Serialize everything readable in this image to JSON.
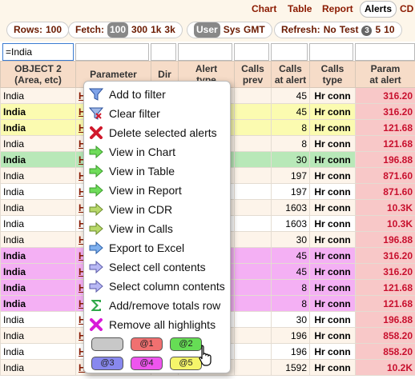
{
  "nav": {
    "tabs": [
      {
        "label": "Chart"
      },
      {
        "label": "Table"
      },
      {
        "label": "Report"
      },
      {
        "label": "Alerts",
        "active": true
      },
      {
        "label": "CD"
      }
    ]
  },
  "toolbar": {
    "rows": {
      "label": "Rows:",
      "value": "100"
    },
    "fetch": {
      "label": "Fetch:",
      "options": [
        "100",
        "300",
        "1k",
        "3k"
      ],
      "selected": "100"
    },
    "tz": {
      "options": [
        "User",
        "Sys",
        "GMT"
      ],
      "selected": "User"
    },
    "refresh": {
      "label": "Refresh:",
      "options": [
        "No",
        "Test",
        "3",
        "5",
        "10"
      ]
    }
  },
  "filter": {
    "value": "=India"
  },
  "table": {
    "headers": [
      "OBJECT 2\n(Area, etc)",
      "Parameter",
      "Dir",
      "Alert\ntype",
      "Calls\nprev",
      "Calls\nat alert",
      "Calls\ntype",
      "Param\nat alert"
    ],
    "rows": [
      {
        "object": "India",
        "param": "H",
        "calls_at_alert": "45",
        "calls_type": "Hr conn",
        "param_at_alert": "316.20",
        "style": "even",
        "bold": false
      },
      {
        "object": "India",
        "param": "H",
        "calls_at_alert": "45",
        "calls_type": "Hr conn",
        "param_at_alert": "316.20",
        "style": "yellow",
        "bold": true
      },
      {
        "object": "India",
        "param": "H",
        "calls_at_alert": "8",
        "calls_type": "Hr conn",
        "param_at_alert": "121.68",
        "style": "yellow",
        "bold": true
      },
      {
        "object": "India",
        "param": "H",
        "calls_at_alert": "8",
        "calls_type": "Hr conn",
        "param_at_alert": "121.68",
        "style": "even",
        "bold": false
      },
      {
        "object": "India",
        "param": "H",
        "calls_at_alert": "30",
        "calls_type": "Hr conn",
        "param_at_alert": "196.88",
        "style": "green",
        "bold": true
      },
      {
        "object": "India",
        "param": "H",
        "calls_at_alert": "197",
        "calls_type": "Hr conn",
        "param_at_alert": "871.60",
        "style": "even",
        "bold": false
      },
      {
        "object": "India",
        "param": "H",
        "calls_at_alert": "197",
        "calls_type": "Hr conn",
        "param_at_alert": "871.60",
        "style": "odd",
        "bold": false
      },
      {
        "object": "India",
        "param": "H",
        "calls_at_alert": "1603",
        "calls_type": "Hr conn",
        "param_at_alert": "10.3K",
        "style": "even",
        "bold": false
      },
      {
        "object": "India",
        "param": "H",
        "calls_at_alert": "1603",
        "calls_type": "Hr conn",
        "param_at_alert": "10.3K",
        "style": "odd",
        "bold": false
      },
      {
        "object": "India",
        "param": "H",
        "calls_at_alert": "30",
        "calls_type": "Hr conn",
        "param_at_alert": "196.88",
        "style": "even",
        "bold": false
      },
      {
        "object": "India",
        "param": "H",
        "calls_at_alert": "45",
        "calls_type": "Hr conn",
        "param_at_alert": "316.20",
        "style": "magenta",
        "bold": true
      },
      {
        "object": "India",
        "param": "H",
        "calls_at_alert": "45",
        "calls_type": "Hr conn",
        "param_at_alert": "316.20",
        "style": "magenta",
        "bold": true
      },
      {
        "object": "India",
        "param": "H",
        "calls_at_alert": "8",
        "calls_type": "Hr conn",
        "param_at_alert": "121.68",
        "style": "magenta",
        "bold": true
      },
      {
        "object": "India",
        "param": "H",
        "calls_at_alert": "8",
        "calls_type": "Hr conn",
        "param_at_alert": "121.68",
        "style": "magenta",
        "bold": true
      },
      {
        "object": "India",
        "param": "H",
        "calls_at_alert": "30",
        "calls_type": "Hr conn",
        "param_at_alert": "196.88",
        "style": "odd",
        "bold": false
      },
      {
        "object": "India",
        "param": "H",
        "calls_at_alert": "196",
        "calls_type": "Hr conn",
        "param_at_alert": "858.20",
        "style": "even",
        "bold": false
      },
      {
        "object": "India",
        "param": "H",
        "calls_at_alert": "196",
        "calls_type": "Hr conn",
        "param_at_alert": "858.20",
        "style": "odd",
        "bold": false
      },
      {
        "object": "India",
        "param": "H",
        "calls_at_alert": "1592",
        "calls_type": "Hr conn",
        "param_at_alert": "10.2K",
        "style": "even",
        "bold": false
      }
    ]
  },
  "menu": {
    "items": [
      {
        "label": "Add to filter",
        "icon": "funnel-icon"
      },
      {
        "label": "Clear filter",
        "icon": "funnel-clear-icon"
      },
      {
        "label": "Delete selected alerts",
        "icon": "delete-x-icon"
      },
      {
        "label": "View in Chart",
        "icon": "arrow-right-green-icon"
      },
      {
        "label": "View in Table",
        "icon": "arrow-right-green-icon"
      },
      {
        "label": "View in Report",
        "icon": "arrow-right-green-icon"
      },
      {
        "label": "View in CDR",
        "icon": "arrow-right-olive-icon"
      },
      {
        "label": "View in Calls",
        "icon": "arrow-right-olive-icon"
      },
      {
        "label": "Export to Excel",
        "icon": "arrow-right-blue-icon"
      },
      {
        "label": "Select cell contents",
        "icon": "arrow-right-lavender-icon"
      },
      {
        "label": "Select column contents",
        "icon": "arrow-right-lavender-icon"
      },
      {
        "label": "Add/remove totals row",
        "icon": "sigma-icon"
      },
      {
        "label": "Remove all highlights",
        "icon": "remove-x-magenta-icon"
      }
    ],
    "highlight_chips": [
      {
        "label": "",
        "color": "#c8c8c8"
      },
      {
        "label": "@1",
        "color": "#f07070"
      },
      {
        "label": "@2",
        "color": "#66dd55"
      },
      {
        "label": "@3",
        "color": "#8888ee"
      },
      {
        "label": "@4",
        "color": "#ee55ee"
      },
      {
        "label": "@5",
        "color": "#f5f56a"
      }
    ]
  },
  "colors": {
    "nav_text": "#8b1a00",
    "header_bg": "#f6dcc8",
    "row_yellow": "#fbfbb0",
    "row_green": "#b8e8b8",
    "row_magenta": "#f4b0f4",
    "param_bg": "#f8c8c8",
    "param_text": "#c8102e"
  }
}
